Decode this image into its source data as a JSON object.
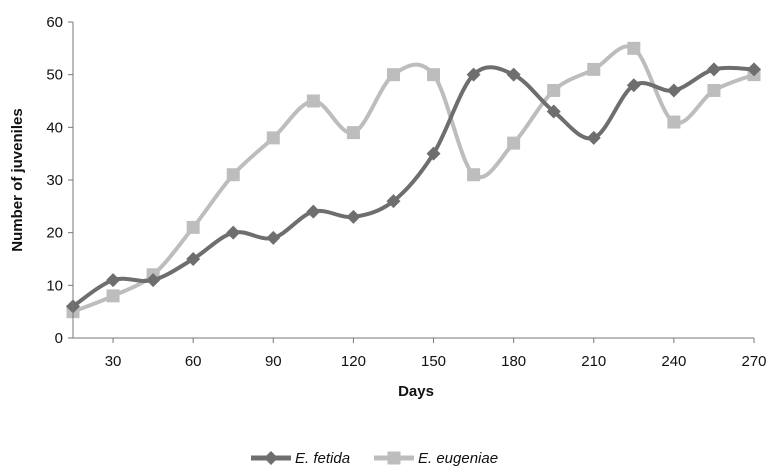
{
  "chart_data": {
    "type": "line",
    "xlabel": "Days",
    "ylabel": "Number of juveniles",
    "xlim": [
      15,
      270
    ],
    "ylim": [
      0,
      60
    ],
    "x_ticks": [
      30,
      60,
      90,
      120,
      150,
      180,
      210,
      240,
      270
    ],
    "y_ticks": [
      0,
      10,
      20,
      30,
      40,
      50,
      60
    ],
    "grid": false,
    "smooth": true,
    "legend_position": "bottom",
    "x": [
      15,
      30,
      45,
      60,
      75,
      90,
      105,
      120,
      135,
      150,
      165,
      180,
      195,
      210,
      225,
      240,
      255,
      270
    ],
    "series": [
      {
        "name": "E. fetida",
        "marker": "diamond",
        "color": "#6e6e6e",
        "values": [
          6,
          11,
          11,
          15,
          20,
          19,
          24,
          23,
          26,
          35,
          50,
          50,
          43,
          38,
          48,
          47,
          51,
          51
        ]
      },
      {
        "name": "E. eugeniae",
        "marker": "square",
        "color": "#bdbdbd",
        "values": [
          5,
          8,
          12,
          21,
          31,
          38,
          45,
          39,
          50,
          50,
          31,
          37,
          47,
          51,
          55,
          41,
          47,
          50
        ]
      }
    ]
  }
}
